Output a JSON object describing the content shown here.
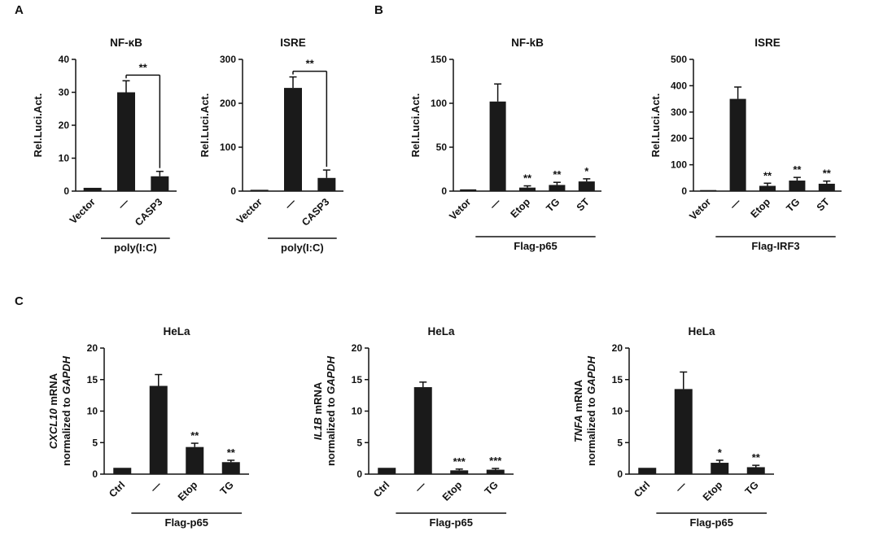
{
  "figure": {
    "panels": [
      {
        "id": "A",
        "label": "A"
      },
      {
        "id": "B",
        "label": "B"
      },
      {
        "id": "C",
        "label": "C"
      }
    ]
  },
  "colors": {
    "bar": "#1a1a1a",
    "text": "#111111"
  },
  "chart_data": [
    {
      "id": "A1",
      "panel": "A",
      "type": "bar",
      "title": "NF-κB",
      "ylabel": "Rel.Luci.Act.",
      "categories": [
        "Vector",
        "—",
        "CASP3"
      ],
      "values": [
        1,
        30,
        4.5
      ],
      "errors": [
        0,
        3.5,
        1.5
      ],
      "ylim": [
        0,
        40
      ],
      "yticks": [
        0,
        10,
        20,
        30,
        40
      ],
      "sig_bracket": {
        "pair": [
          1,
          2
        ],
        "label": "**"
      },
      "group_label": "poly(I:C)",
      "group_span": [
        1,
        2
      ]
    },
    {
      "id": "A2",
      "panel": "A",
      "type": "bar",
      "title": "ISRE",
      "ylabel": "Rel.Luci.Act.",
      "categories": [
        "Vector",
        "—",
        "CASP3"
      ],
      "values": [
        3,
        235,
        30
      ],
      "errors": [
        0,
        25,
        18
      ],
      "ylim": [
        0,
        300
      ],
      "yticks": [
        0,
        100,
        200,
        300
      ],
      "sig_bracket": {
        "pair": [
          1,
          2
        ],
        "label": "**"
      },
      "group_label": "poly(I:C)",
      "group_span": [
        1,
        2
      ]
    },
    {
      "id": "B1",
      "panel": "B",
      "type": "bar",
      "title": "NF-kB",
      "ylabel": "Rel.Luci.Act.",
      "categories": [
        "Vetor",
        "—",
        "Etop",
        "TG",
        "ST"
      ],
      "values": [
        2,
        102,
        4,
        7,
        11
      ],
      "errors": [
        0,
        20,
        2,
        3,
        3
      ],
      "ylim": [
        0,
        150
      ],
      "yticks": [
        0,
        50,
        100,
        150
      ],
      "bar_stars": [
        "",
        "",
        "**",
        "**",
        "*"
      ],
      "group_label": "Flag-p65",
      "group_span": [
        1,
        4
      ]
    },
    {
      "id": "B2",
      "panel": "B",
      "type": "bar",
      "title": "ISRE",
      "ylabel": "Rel.Luci.Act.",
      "categories": [
        "Vetor",
        "—",
        "Etop",
        "TG",
        "ST"
      ],
      "values": [
        4,
        350,
        20,
        40,
        28
      ],
      "errors": [
        0,
        45,
        10,
        12,
        10
      ],
      "ylim": [
        0,
        500
      ],
      "yticks": [
        0,
        100,
        200,
        300,
        400,
        500
      ],
      "bar_stars": [
        "",
        "",
        "**",
        "**",
        "**"
      ],
      "group_label": "Flag-IRF3",
      "group_span": [
        1,
        4
      ]
    },
    {
      "id": "C1",
      "panel": "C",
      "type": "bar",
      "title": "HeLa",
      "ylabel_lines": [
        [
          {
            "t": "CXCL10",
            "i": true
          },
          {
            "t": " mRNA",
            "i": false
          }
        ],
        [
          {
            "t": "normalized to ",
            "i": false
          },
          {
            "t": "GAPDH",
            "i": true
          }
        ]
      ],
      "categories": [
        "Ctrl",
        "—",
        "Etop",
        "TG"
      ],
      "values": [
        1,
        14,
        4.3,
        1.9
      ],
      "errors": [
        0,
        1.8,
        0.6,
        0.3
      ],
      "ylim": [
        0,
        20
      ],
      "yticks": [
        0,
        5,
        10,
        15,
        20
      ],
      "bar_stars": [
        "",
        "",
        "**",
        "**"
      ],
      "group_label": "Flag-p65",
      "group_span": [
        1,
        3
      ]
    },
    {
      "id": "C2",
      "panel": "C",
      "type": "bar",
      "title": "HeLa",
      "ylabel_lines": [
        [
          {
            "t": "IL1B",
            "i": true
          },
          {
            "t": " mRNA",
            "i": false
          }
        ],
        [
          {
            "t": "normalized to ",
            "i": false
          },
          {
            "t": "GAPDH",
            "i": true
          }
        ]
      ],
      "categories": [
        "Ctrl",
        "—",
        "Etop",
        "TG"
      ],
      "values": [
        1,
        13.8,
        0.6,
        0.7
      ],
      "errors": [
        0,
        0.8,
        0.2,
        0.2
      ],
      "ylim": [
        0,
        20
      ],
      "yticks": [
        0,
        5,
        10,
        15,
        20
      ],
      "bar_stars": [
        "",
        "",
        "***",
        "***"
      ],
      "group_label": "Flag-p65",
      "group_span": [
        1,
        3
      ]
    },
    {
      "id": "C3",
      "panel": "C",
      "type": "bar",
      "title": "HeLa",
      "ylabel_lines": [
        [
          {
            "t": "TNFA",
            "i": true
          },
          {
            "t": " mRNA",
            "i": false
          }
        ],
        [
          {
            "t": "normalized to ",
            "i": false
          },
          {
            "t": "GAPDH",
            "i": true
          }
        ]
      ],
      "categories": [
        "Ctrl",
        "—",
        "Etop",
        "TG"
      ],
      "values": [
        1,
        13.5,
        1.8,
        1.1
      ],
      "errors": [
        0,
        2.7,
        0.4,
        0.3
      ],
      "ylim": [
        0,
        20
      ],
      "yticks": [
        0,
        5,
        10,
        15,
        20
      ],
      "bar_stars": [
        "",
        "",
        "*",
        "**"
      ],
      "group_label": "Flag-p65",
      "group_span": [
        1,
        3
      ]
    }
  ]
}
